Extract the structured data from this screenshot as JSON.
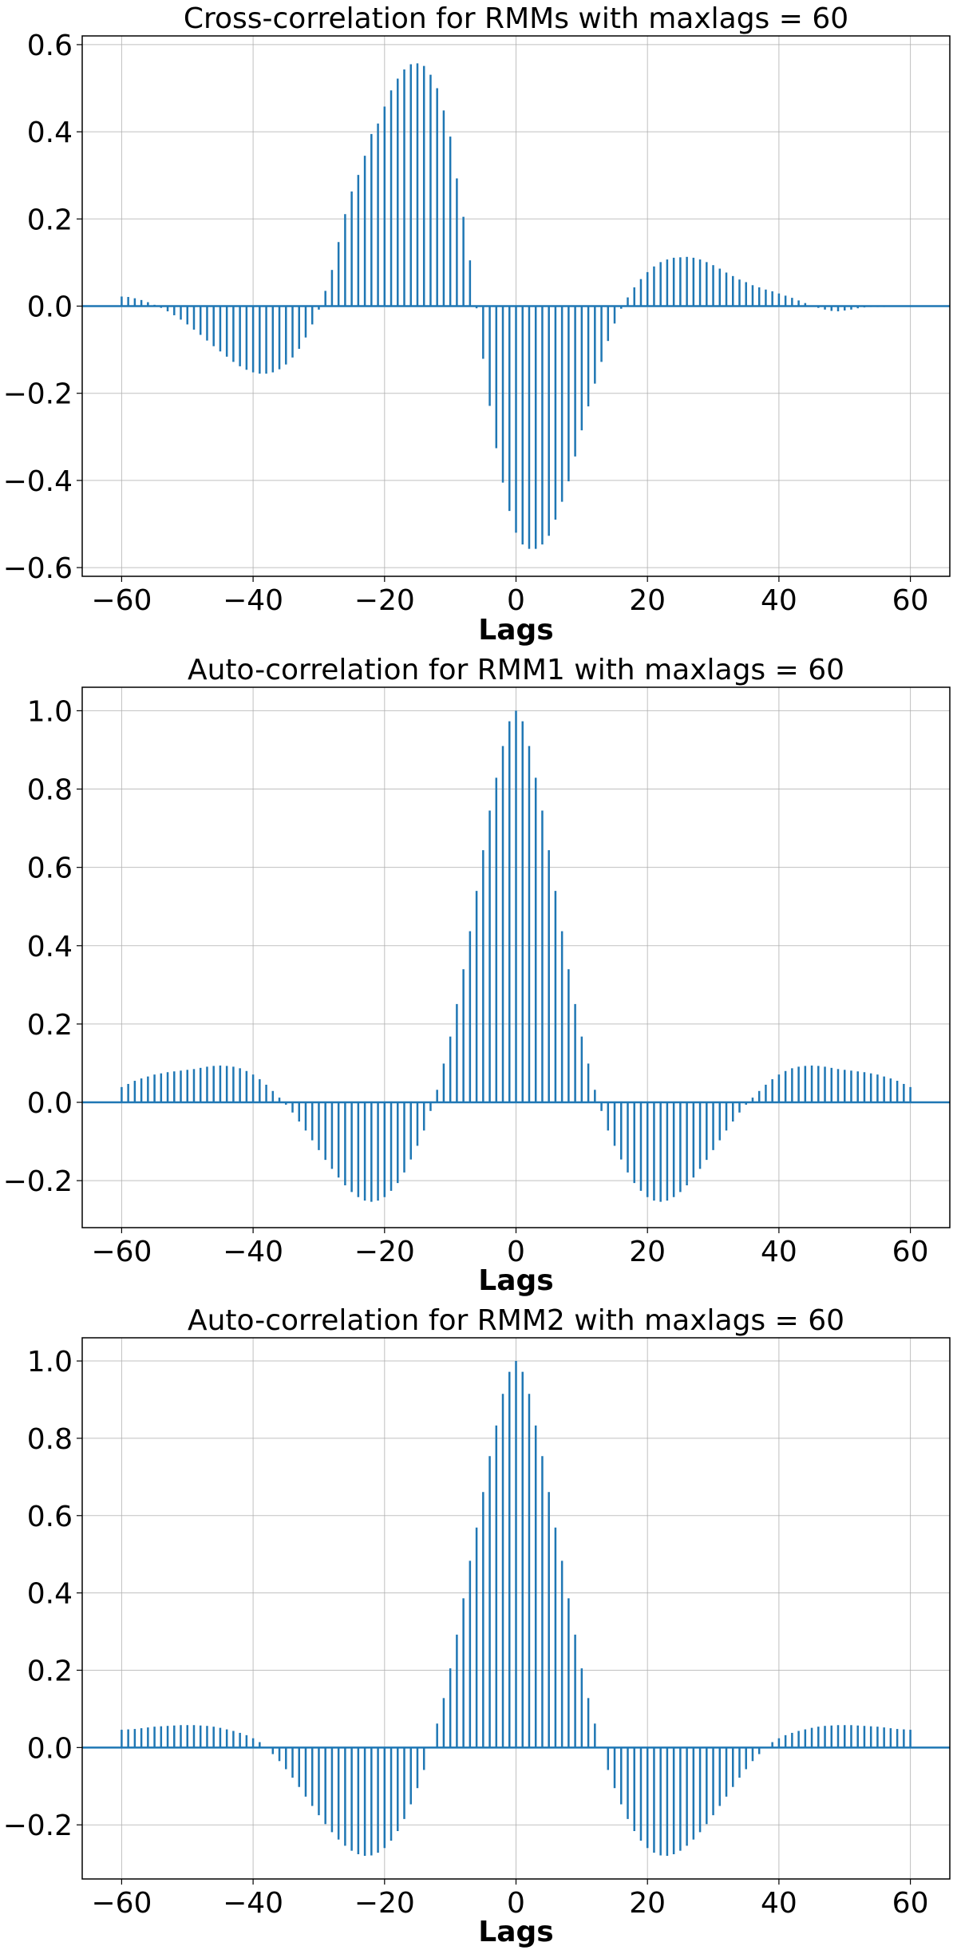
{
  "chart_data": [
    {
      "type": "stem",
      "title": "Cross-correlation for  RMMs with maxlags = 60",
      "xlabel": "Lags",
      "ylabel": "",
      "xlim": [
        -66,
        66
      ],
      "ylim": [
        -0.62,
        0.62
      ],
      "xticks": [
        -60,
        -40,
        -20,
        0,
        20,
        40,
        60
      ],
      "xtick_labels": [
        "−60",
        "−40",
        "−20",
        "0",
        "20",
        "40",
        "60"
      ],
      "yticks": [
        -0.6,
        -0.4,
        -0.2,
        0.0,
        0.2,
        0.4,
        0.6
      ],
      "ytick_labels": [
        "−0.6",
        "−0.4",
        "−0.2",
        "0.0",
        "0.2",
        "0.4",
        "0.6"
      ],
      "grid": true,
      "color": "#1f77b4",
      "series": [
        {
          "lag_start": -60,
          "values": [
            0.022,
            0.021,
            0.018,
            0.014,
            0.009,
            0.003,
            -0.004,
            -0.012,
            -0.021,
            -0.031,
            -0.042,
            -0.054,
            -0.066,
            -0.079,
            -0.092,
            -0.104,
            -0.116,
            -0.128,
            -0.138,
            -0.146,
            -0.152,
            -0.155,
            -0.155,
            -0.152,
            -0.145,
            -0.134,
            -0.118,
            -0.098,
            -0.072,
            -0.042,
            -0.008,
            0.035,
            0.083,
            0.147,
            0.211,
            0.263,
            0.301,
            0.345,
            0.395,
            0.419,
            0.458,
            0.495,
            0.522,
            0.543,
            0.555,
            0.557,
            0.551,
            0.531,
            0.5,
            0.449,
            0.389,
            0.293,
            0.205,
            0.105,
            -0.005,
            -0.121,
            -0.229,
            -0.326,
            -0.405,
            -0.47,
            -0.52,
            -0.547,
            -0.557,
            -0.557,
            -0.547,
            -0.527,
            -0.49,
            -0.449,
            -0.402,
            -0.345,
            -0.285,
            -0.23,
            -0.178,
            -0.128,
            -0.08,
            -0.04,
            -0.006,
            0.02,
            0.043,
            0.062,
            0.078,
            0.091,
            0.101,
            0.107,
            0.111,
            0.112,
            0.113,
            0.111,
            0.107,
            0.101,
            0.094,
            0.086,
            0.077,
            0.069,
            0.061,
            0.055,
            0.048,
            0.043,
            0.038,
            0.034,
            0.029,
            0.024,
            0.019,
            0.013,
            0.007,
            0.001,
            -0.004,
            -0.008,
            -0.011,
            -0.012,
            -0.01,
            -0.008,
            -0.005,
            -0.003,
            -0.002,
            -0.002,
            -0.002,
            -0.001,
            -0.001,
            0.0,
            0.0
          ]
        }
      ]
    },
    {
      "type": "stem",
      "title": "Auto-correlation for RMM1 with maxlags = 60",
      "xlabel": "Lags",
      "ylabel": "",
      "xlim": [
        -66,
        66
      ],
      "ylim": [
        -0.32,
        1.06
      ],
      "xticks": [
        -60,
        -40,
        -20,
        0,
        20,
        40,
        60
      ],
      "xtick_labels": [
        "−60",
        "−40",
        "−20",
        "0",
        "20",
        "40",
        "60"
      ],
      "yticks": [
        -0.2,
        0.0,
        0.2,
        0.4,
        0.6,
        0.8,
        1.0
      ],
      "ytick_labels": [
        "−0.2",
        "0.0",
        "0.2",
        "0.4",
        "0.6",
        "0.8",
        "1.0"
      ],
      "grid": true,
      "color": "#1f77b4",
      "series": [
        {
          "lag_start": -60,
          "symmetric": true,
          "values_nonneg_lags": [
            1.0,
            0.973,
            0.91,
            0.829,
            0.745,
            0.644,
            0.54,
            0.437,
            0.34,
            0.251,
            0.168,
            0.099,
            0.032,
            -0.022,
            -0.072,
            -0.111,
            -0.146,
            -0.179,
            -0.206,
            -0.226,
            -0.242,
            -0.251,
            -0.254,
            -0.251,
            -0.242,
            -0.229,
            -0.212,
            -0.192,
            -0.17,
            -0.147,
            -0.122,
            -0.097,
            -0.072,
            -0.049,
            -0.026,
            -0.006,
            0.012,
            0.029,
            0.045,
            0.059,
            0.071,
            0.08,
            0.087,
            0.091,
            0.093,
            0.094,
            0.093,
            0.091,
            0.088,
            0.085,
            0.083,
            0.081,
            0.079,
            0.077,
            0.074,
            0.071,
            0.066,
            0.061,
            0.055,
            0.047,
            0.039
          ]
        }
      ]
    },
    {
      "type": "stem",
      "title": "Auto-correlation for RMM2 with maxlags = 60",
      "xlabel": "Lags",
      "ylabel": "",
      "xlim": [
        -66,
        66
      ],
      "ylim": [
        -0.34,
        1.06
      ],
      "xticks": [
        -60,
        -40,
        -20,
        0,
        20,
        40,
        60
      ],
      "xtick_labels": [
        "−60",
        "−40",
        "−20",
        "0",
        "20",
        "40",
        "60"
      ],
      "yticks": [
        -0.2,
        0.0,
        0.2,
        0.4,
        0.6,
        0.8,
        1.0
      ],
      "ytick_labels": [
        "−0.2",
        "0.0",
        "0.2",
        "0.4",
        "0.6",
        "0.8",
        "1.0"
      ],
      "grid": true,
      "color": "#1f77b4",
      "series": [
        {
          "lag_start": -60,
          "symmetric": true,
          "values_nonneg_lags": [
            1.0,
            0.972,
            0.915,
            0.833,
            0.754,
            0.661,
            0.569,
            0.483,
            0.386,
            0.292,
            0.205,
            0.128,
            0.062,
            -0.002,
            -0.058,
            -0.105,
            -0.147,
            -0.185,
            -0.216,
            -0.241,
            -0.26,
            -0.272,
            -0.279,
            -0.28,
            -0.276,
            -0.267,
            -0.254,
            -0.238,
            -0.219,
            -0.198,
            -0.175,
            -0.151,
            -0.127,
            -0.102,
            -0.078,
            -0.056,
            -0.035,
            -0.017,
            0.0,
            0.014,
            0.024,
            0.032,
            0.038,
            0.043,
            0.047,
            0.051,
            0.054,
            0.056,
            0.057,
            0.058,
            0.058,
            0.058,
            0.057,
            0.056,
            0.055,
            0.054,
            0.052,
            0.05,
            0.048,
            0.047,
            0.046
          ]
        }
      ]
    }
  ]
}
